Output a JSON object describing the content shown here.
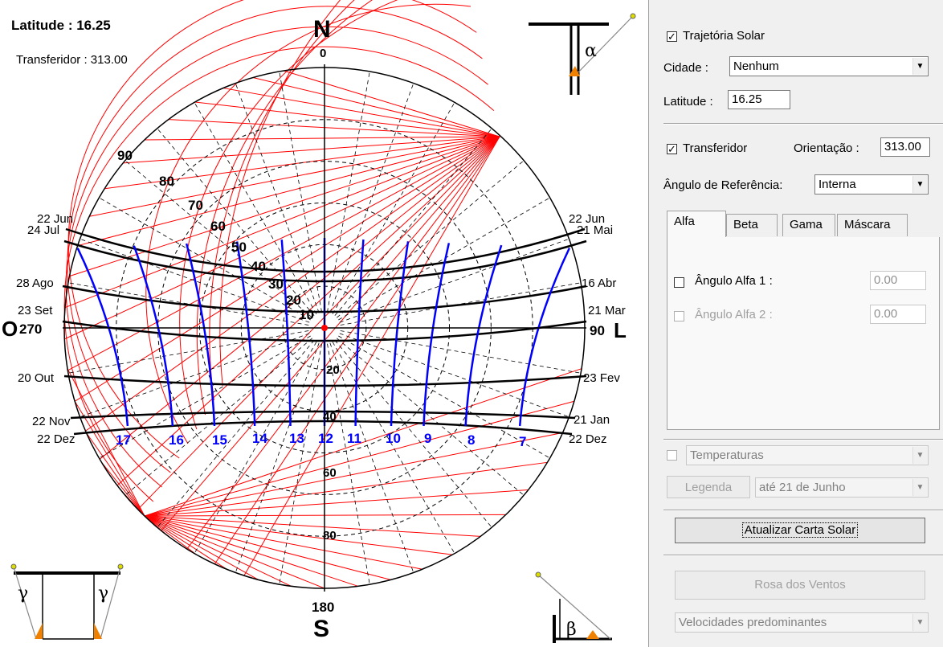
{
  "chart": {
    "latitude_label": "Latitude : 16.25",
    "protractor_label": "Transferidor : 313.00",
    "north": "N",
    "south": "S",
    "west": "O",
    "east": "L",
    "az_0": "0",
    "az_90": "90",
    "az_180": "180",
    "az_270": "270",
    "protractor_scale": [
      "90",
      "80",
      "70",
      "60",
      "50",
      "40",
      "30",
      "20",
      "10"
    ],
    "altitude_labels": [
      "20",
      "40",
      "60",
      "80"
    ],
    "dates_left": [
      "22 Jun",
      "24 Jul",
      "28 Ago",
      "23 Set",
      "20 Out",
      "22 Nov",
      "22 Dez"
    ],
    "dates_right": [
      "22 Jun",
      "21 Mai",
      "16 Abr",
      "21 Mar",
      "23 Fev",
      "21 Jan",
      "22 Dez"
    ],
    "hours": [
      "17",
      "16",
      "15",
      "14",
      "13",
      "12",
      "11",
      "10",
      "9",
      "8",
      "7"
    ],
    "icon_alpha": "α",
    "icon_beta": "β",
    "icon_gamma": "γ"
  },
  "panel": {
    "trajetoria_label": "Trajetória Solar",
    "trajetoria_checked": true,
    "cidade_label": "Cidade :",
    "cidade_value": "Nenhum",
    "latitude_label": "Latitude :",
    "latitude_value": "16.25",
    "transferidor_label": "Transferidor",
    "transferidor_checked": true,
    "orientacao_label": "Orientação :",
    "orientacao_value": "313.00",
    "angulo_ref_label": "Ângulo de Referência:",
    "angulo_ref_value": "Interna",
    "tabs": [
      "Alfa",
      "Beta",
      "Gama",
      "Máscara"
    ],
    "alfa1_label": "Ângulo Alfa 1 :",
    "alfa1_value": "0.00",
    "alfa2_label": "Ângulo Alfa 2 :",
    "alfa2_value": "0.00",
    "temperaturas_value": "Temperaturas",
    "legenda_label": "Legenda",
    "periodo_value": "até 21 de Junho",
    "atualizar_label": "Atualizar Carta Solar",
    "rosa_label": "Rosa dos Ventos",
    "velocidades_value": "Velocidades predominantes"
  },
  "colors": {
    "protractor": "#ff0000",
    "hour_lines": "#0000ff",
    "date_lines": "#000000",
    "orange": "#f08000"
  }
}
